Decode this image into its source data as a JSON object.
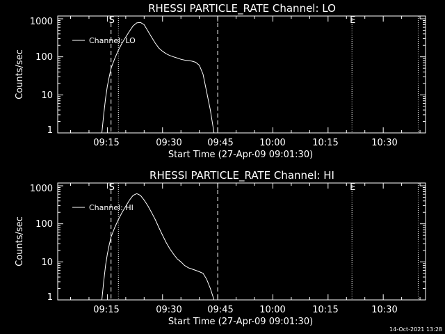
{
  "footer_timestamp": "14-Oct-2021 13:28",
  "colors": {
    "background": "#000000",
    "foreground": "#ffffff"
  },
  "chart_data": [
    {
      "type": "line",
      "title": "RHESSI PARTICLE_RATE Channel: LO",
      "xlabel": "Start Time (27-Apr-09 09:01:30)",
      "ylabel": "Counts/sec",
      "yscale": "log",
      "ylim": [
        1,
        1000
      ],
      "xlim": [
        "09:01:30",
        "10:41:30"
      ],
      "x_ticks": [
        "09:15",
        "09:30",
        "09:45",
        "10:00",
        "10:15",
        "10:30"
      ],
      "y_ticks": [
        "1",
        "10",
        "100",
        "1000"
      ],
      "legend": {
        "placement": "upper-left",
        "label": "Channel: LO"
      },
      "markers": [
        {
          "time": "09:16:00",
          "style": "dashed",
          "label": "S"
        },
        {
          "time": "09:18:00",
          "style": "dotted",
          "label": ""
        },
        {
          "time": "09:45:00",
          "style": "dashed",
          "label": ""
        },
        {
          "time": "10:21:30",
          "style": "dotted",
          "label": "E"
        },
        {
          "time": "10:39:30",
          "style": "dotted",
          "label": ""
        }
      ],
      "series": [
        {
          "name": "Channel: LO",
          "x": [
            "09:13:30",
            "09:14:00",
            "09:14:30",
            "09:15:00",
            "09:15:30",
            "09:16:00",
            "09:17:00",
            "09:18:00",
            "09:19:00",
            "09:20:00",
            "09:21:00",
            "09:22:00",
            "09:23:00",
            "09:24:00",
            "09:25:00",
            "09:26:00",
            "09:27:00",
            "09:28:00",
            "09:29:00",
            "09:30:00",
            "09:31:00",
            "09:32:00",
            "09:33:00",
            "09:34:00",
            "09:35:00",
            "09:36:00",
            "09:37:00",
            "09:38:00",
            "09:39:00",
            "09:40:00",
            "09:41:00",
            "09:42:00",
            "09:43:00",
            "09:44:00"
          ],
          "y": [
            1,
            3,
            8,
            17,
            30,
            50,
            90,
            150,
            230,
            330,
            470,
            650,
            780,
            800,
            700,
            480,
            330,
            230,
            170,
            140,
            120,
            108,
            100,
            93,
            86,
            82,
            80,
            77,
            72,
            60,
            35,
            12,
            4,
            1
          ]
        }
      ]
    },
    {
      "type": "line",
      "title": "RHESSI PARTICLE_RATE Channel: HI",
      "xlabel": "Start Time (27-Apr-09 09:01:30)",
      "ylabel": "Counts/sec",
      "yscale": "log",
      "ylim": [
        1,
        1000
      ],
      "xlim": [
        "09:01:30",
        "10:41:30"
      ],
      "x_ticks": [
        "09:15",
        "09:30",
        "09:45",
        "10:00",
        "10:15",
        "10:30"
      ],
      "y_ticks": [
        "1",
        "10",
        "100",
        "1000"
      ],
      "legend": {
        "placement": "upper-left",
        "label": "Channel: HI"
      },
      "markers": [
        {
          "time": "09:16:00",
          "style": "dashed",
          "label": "S"
        },
        {
          "time": "09:18:00",
          "style": "dotted",
          "label": ""
        },
        {
          "time": "09:45:00",
          "style": "dashed",
          "label": ""
        },
        {
          "time": "10:21:30",
          "style": "dotted",
          "label": "E"
        },
        {
          "time": "10:39:30",
          "style": "dotted",
          "label": ""
        }
      ],
      "series": [
        {
          "name": "Channel: HI",
          "x": [
            "09:13:30",
            "09:14:00",
            "09:14:30",
            "09:15:00",
            "09:15:30",
            "09:16:00",
            "09:17:00",
            "09:18:00",
            "09:19:00",
            "09:20:00",
            "09:21:00",
            "09:22:00",
            "09:23:00",
            "09:24:00",
            "09:25:00",
            "09:26:00",
            "09:27:00",
            "09:28:00",
            "09:29:00",
            "09:30:00",
            "09:31:00",
            "09:32:00",
            "09:33:00",
            "09:34:00",
            "09:35:00",
            "09:36:00",
            "09:37:00",
            "09:38:00",
            "09:39:00",
            "09:40:00",
            "09:41:00",
            "09:42:00",
            "09:43:00",
            "09:44:00"
          ],
          "y": [
            1,
            3,
            8,
            16,
            28,
            45,
            80,
            130,
            200,
            290,
            420,
            560,
            620,
            560,
            420,
            300,
            200,
            130,
            80,
            50,
            32,
            22,
            16,
            12,
            10,
            8,
            7,
            6.5,
            6,
            5.5,
            5,
            3.5,
            2,
            1
          ]
        }
      ]
    }
  ]
}
